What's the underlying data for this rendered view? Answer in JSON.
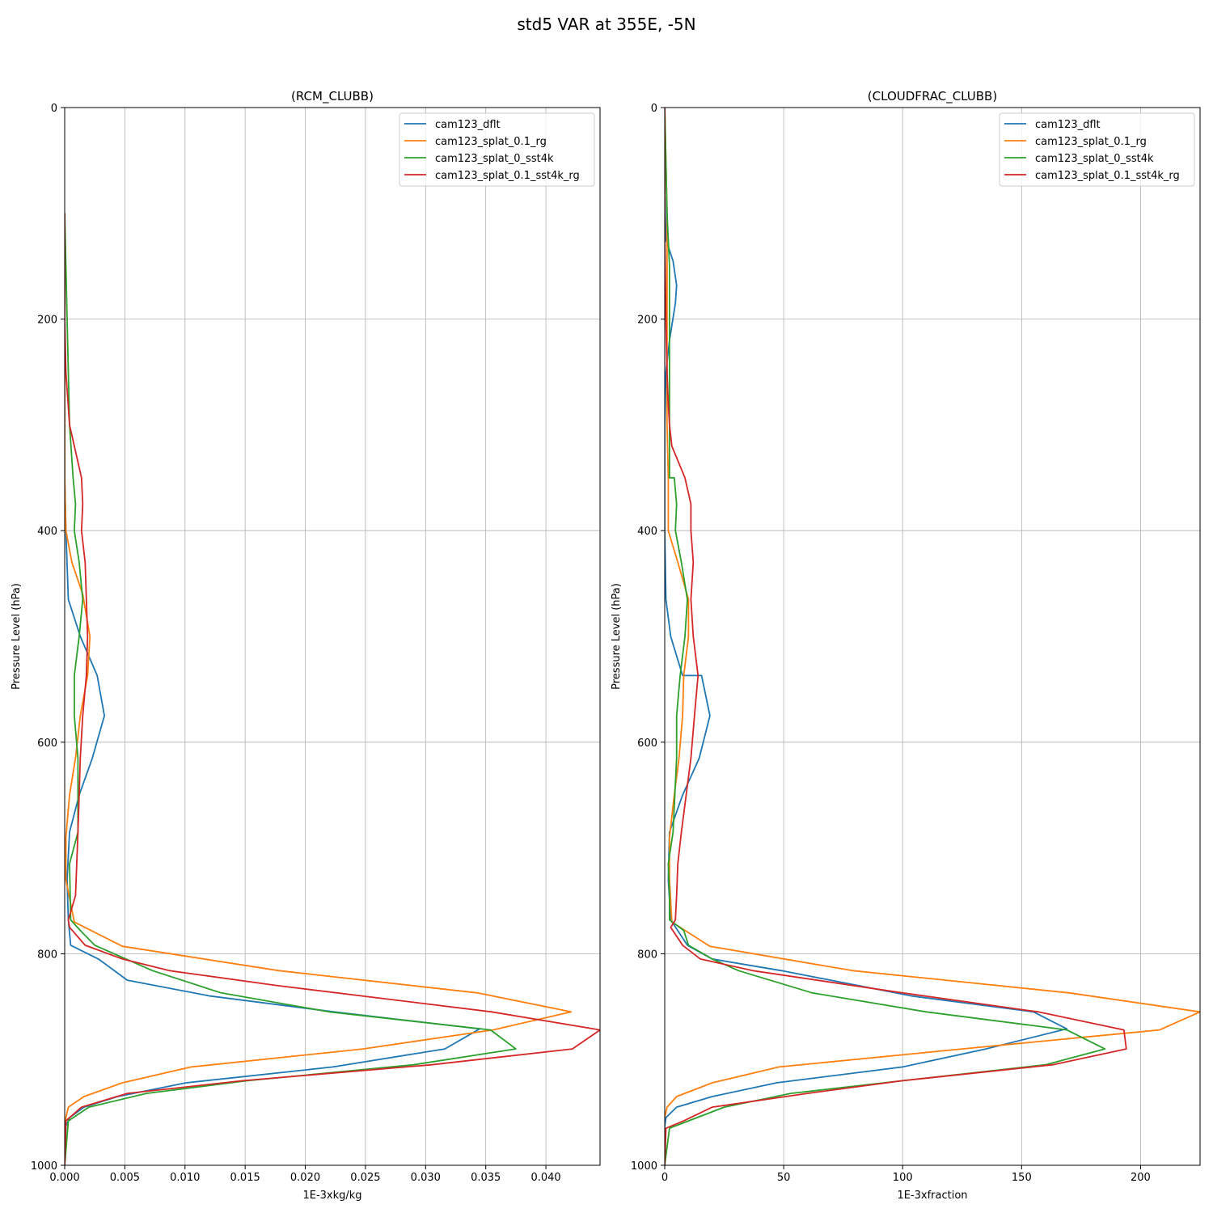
{
  "figure": {
    "suptitle": "std5 VAR at 355E, -5N"
  },
  "colors": {
    "cam123_dflt": "#1f77b4",
    "cam123_splat_0.1_rg": "#ff7f0e",
    "cam123_splat_0_sst4k": "#2ca02c",
    "cam123_splat_0.1_sst4k_rg": "#d62728",
    "grid": "#b0b0b0"
  },
  "chart_data": [
    {
      "type": "line",
      "title": "(RCM_CLUBB)",
      "xlabel": "1E-3xkg/kg",
      "ylabel": "Pressure Level (hPa)",
      "xlim": [
        0,
        0.0445
      ],
      "ylim": [
        1000,
        0
      ],
      "y_inverted": true,
      "grid": true,
      "legend": "top-right",
      "xticks": [
        0,
        0.005,
        0.01,
        0.015,
        0.02,
        0.025,
        0.03,
        0.035,
        0.04
      ],
      "xtick_labels": [
        "0.000",
        "0.005",
        "0.010",
        "0.015",
        "0.020",
        "0.025",
        "0.030",
        "0.035",
        "0.040"
      ],
      "yticks": [
        0,
        200,
        400,
        600,
        800,
        1000
      ],
      "ytick_labels": [
        "0",
        "200",
        "400",
        "600",
        "800",
        "1000"
      ],
      "series": [
        {
          "name": "cam123_dflt",
          "x": [
            0,
            0,
            0,
            0,
            0.0001,
            0.0003,
            0.0013,
            0.0027,
            0.0033,
            0.0023,
            0.0012,
            0.0004,
            0.0002,
            0.0003,
            0.0005,
            0.0028,
            0.0052,
            0.0121,
            0.0224,
            0.0345,
            0.0316,
            0.0223,
            0.0101,
            0.0044,
            0.0016,
            0.0004,
            0.0001,
            0
          ],
          "y": [
            100,
            200,
            300,
            350,
            400,
            465,
            500,
            537,
            575,
            615,
            650,
            685,
            730,
            768,
            792,
            805,
            825,
            840,
            855,
            871,
            890,
            907,
            922,
            935,
            945,
            955,
            963,
            1000
          ]
        },
        {
          "name": "cam123_splat_0.1_rg",
          "x": [
            0,
            0,
            0,
            0,
            0.0001,
            0.0006,
            0.0015,
            0.0021,
            0.0019,
            0.0013,
            0.0009,
            0.0004,
            0.0001,
            0.0001,
            0.0008,
            0.0048,
            0.0178,
            0.0343,
            0.0421,
            0.0356,
            0.0248,
            0.0105,
            0.0048,
            0.0016,
            0.0003,
            0.0001,
            0
          ],
          "y": [
            100,
            200,
            300,
            350,
            400,
            430,
            460,
            500,
            537,
            575,
            615,
            650,
            690,
            730,
            770,
            793,
            816,
            837,
            855,
            872,
            890,
            907,
            922,
            935,
            945,
            955,
            1000
          ]
        },
        {
          "name": "cam123_splat_0_sst4k",
          "x": [
            0,
            0.0002,
            0.0004,
            0.0007,
            0.0009,
            0.0008,
            0.0012,
            0.0015,
            0.0012,
            0.0008,
            0.0008,
            0.0011,
            0.0011,
            0.0004,
            0.0005,
            0.0013,
            0.0025,
            0.0051,
            0.0073,
            0.013,
            0.022,
            0.0354,
            0.0375,
            0.029,
            0.0152,
            0.0068,
            0.002,
            0.0003,
            0
          ],
          "y": [
            100,
            200,
            300,
            350,
            375,
            400,
            430,
            465,
            500,
            537,
            575,
            615,
            685,
            715,
            768,
            778,
            792,
            805,
            816,
            837,
            855,
            872,
            890,
            905,
            920,
            932,
            945,
            958,
            1000
          ]
        },
        {
          "name": "cam123_splat_0.1_sst4k_rg",
          "x": [
            0,
            0,
            0.0001,
            0.0004,
            0.0014,
            0.0015,
            0.0014,
            0.0017,
            0.0018,
            0.0019,
            0.0018,
            0.0015,
            0.0013,
            0.0012,
            0.0011,
            0.001,
            0.0009,
            0.0003,
            0.0004,
            0.0017,
            0.0048,
            0.0087,
            0.0176,
            0.0355,
            0.0445,
            0.0422,
            0.0305,
            0.0148,
            0.0052,
            0.0014,
            0.0001,
            0
          ],
          "y": [
            100,
            200,
            250,
            300,
            350,
            375,
            400,
            430,
            465,
            500,
            537,
            575,
            615,
            650,
            685,
            715,
            745,
            768,
            775,
            792,
            805,
            816,
            830,
            855,
            872,
            890,
            905,
            920,
            932,
            945,
            958,
            1000
          ]
        }
      ]
    },
    {
      "type": "line",
      "title": "(CLOUDFRAC_CLUBB)",
      "xlabel": "1E-3xfraction",
      "ylabel": "Pressure Level (hPa)",
      "xlim": [
        0,
        225
      ],
      "ylim": [
        1000,
        0
      ],
      "y_inverted": true,
      "grid": true,
      "legend": "top-right",
      "xticks": [
        0,
        50,
        100,
        150,
        200
      ],
      "xtick_labels": [
        "0",
        "50",
        "100",
        "150",
        "200"
      ],
      "yticks": [
        0,
        200,
        400,
        600,
        800,
        1000
      ],
      "ytick_labels": [
        "0",
        "200",
        "400",
        "600",
        "800",
        "1000"
      ],
      "series": [
        {
          "name": "cam123_dflt",
          "x": [
            0,
            0,
            0.5,
            1,
            3.5,
            5,
            4.5,
            2,
            0.5,
            0,
            0,
            0.5,
            2.5,
            7.5,
            15.5,
            19,
            14.5,
            7.5,
            2,
            1.5,
            2.5,
            9.5,
            20,
            49,
            104,
            155,
            169,
            135,
            100,
            47,
            20,
            5,
            0.5,
            0,
            0
          ],
          "y": [
            0,
            80,
            125,
            128,
            145,
            168,
            185,
            220,
            250,
            300,
            400,
            465,
            500,
            537,
            537,
            575,
            615,
            650,
            685,
            730,
            768,
            792,
            805,
            816,
            840,
            855,
            871,
            890,
            907,
            922,
            935,
            945,
            955,
            963,
            1000
          ]
        },
        {
          "name": "cam123_splat_0.1_rg",
          "x": [
            0,
            1,
            1,
            1.5,
            1.5,
            5.5,
            10,
            10,
            8,
            7.5,
            6,
            4,
            2,
            2,
            3,
            19,
            79,
            170,
            225,
            208,
            125,
            48,
            20,
            5,
            1,
            0
          ],
          "y": [
            0,
            100,
            300,
            350,
            400,
            430,
            465,
            500,
            537,
            575,
            615,
            650,
            690,
            730,
            770,
            793,
            816,
            837,
            855,
            872,
            890,
            907,
            922,
            935,
            945,
            955
          ]
        },
        {
          "name": "cam123_splat_0_sst4k",
          "x": [
            0,
            1,
            2,
            2,
            2,
            4,
            5,
            4.5,
            7,
            9.5,
            8.5,
            6.5,
            5,
            5,
            3.5,
            1.5,
            2,
            2,
            8,
            10,
            20,
            31,
            62,
            110,
            169,
            185,
            160,
            100,
            53,
            25,
            10,
            2,
            0
          ],
          "y": [
            0,
            100,
            150,
            200,
            350,
            350,
            375,
            400,
            430,
            465,
            500,
            537,
            575,
            615,
            685,
            715,
            745,
            768,
            778,
            792,
            805,
            816,
            837,
            855,
            872,
            890,
            905,
            920,
            932,
            945,
            958,
            965,
            1000
          ]
        },
        {
          "name": "cam123_splat_0.1_sst4k_rg",
          "x": [
            0,
            0,
            0.5,
            1,
            1.5,
            2,
            3,
            8.5,
            11,
            11,
            12,
            11,
            12,
            14,
            12.5,
            11,
            9,
            7,
            5.5,
            5,
            4.5,
            2.5,
            7.5,
            15,
            37,
            100,
            157,
            193,
            194,
            163,
            100,
            60,
            20,
            8,
            0.5,
            0
          ],
          "y": [
            0,
            120,
            200,
            250,
            280,
            300,
            320,
            350,
            375,
            400,
            430,
            465,
            500,
            537,
            575,
            615,
            650,
            685,
            715,
            745,
            768,
            775,
            792,
            805,
            816,
            837,
            855,
            872,
            890,
            905,
            920,
            932,
            945,
            958,
            965,
            1000
          ]
        }
      ]
    }
  ]
}
